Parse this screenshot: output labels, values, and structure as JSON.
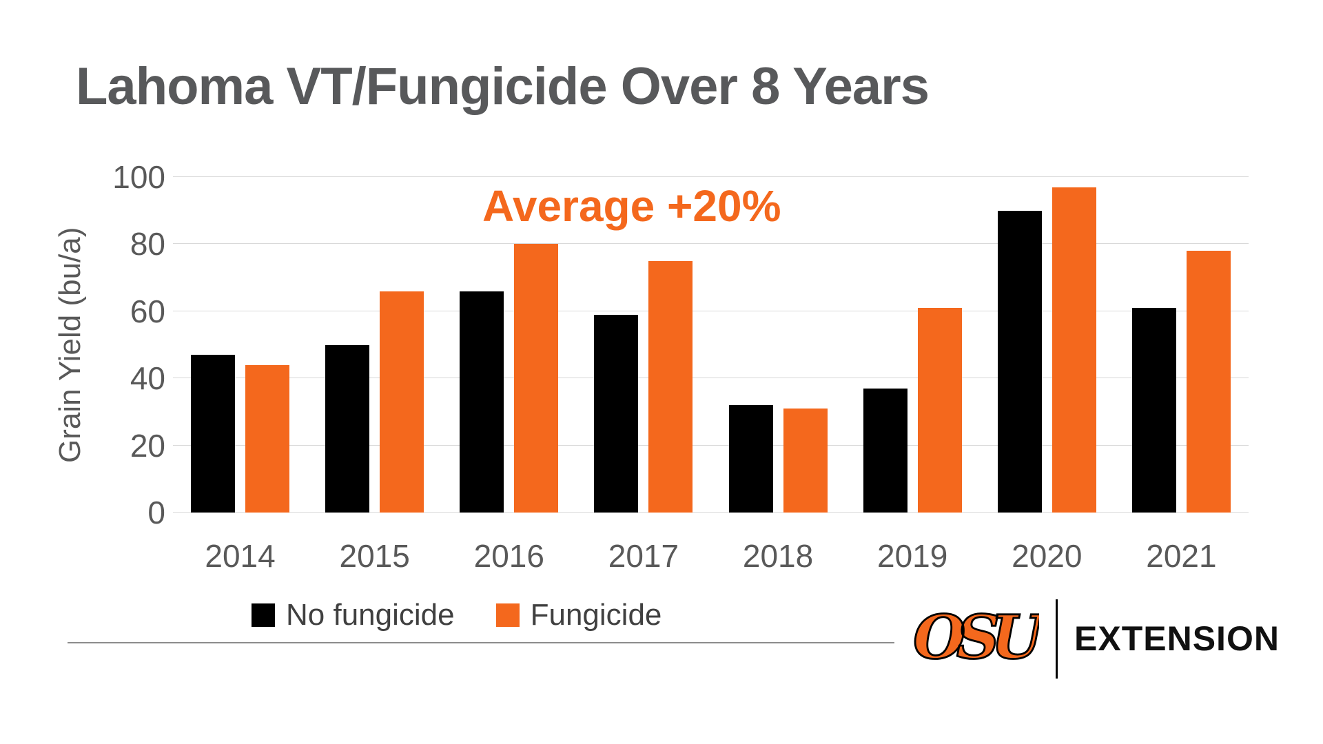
{
  "title": "Lahoma VT/Fungicide Over 8 Years",
  "colors": {
    "no_fungicide": "#000000",
    "fungicide": "#F4681D",
    "title_gray": "#58595B",
    "axis_gray": "#595959",
    "gridline": "#D9D9D9"
  },
  "chart_data": {
    "type": "bar",
    "title": "Lahoma VT/Fungicide Over 8 Years",
    "annotation": "Average +20%",
    "categories": [
      "2014",
      "2015",
      "2016",
      "2017",
      "2018",
      "2019",
      "2020",
      "2021"
    ],
    "series": [
      {
        "name": "No fungicide",
        "color": "#000000",
        "values": [
          47,
          50,
          66,
          59,
          32,
          37,
          90,
          61
        ]
      },
      {
        "name": "Fungicide",
        "color": "#F4681D",
        "values": [
          44,
          66,
          80,
          75,
          31,
          61,
          97,
          78
        ]
      }
    ],
    "xlabel": "",
    "ylabel": "Grain Yield (bu/a)",
    "ylim": [
      0,
      100
    ],
    "yticks": [
      0,
      20,
      40,
      60,
      80,
      100
    ],
    "grid": true,
    "legend_position": "bottom"
  },
  "footer": {
    "logo_text": "OSU",
    "brand_text": "EXTENSION"
  }
}
